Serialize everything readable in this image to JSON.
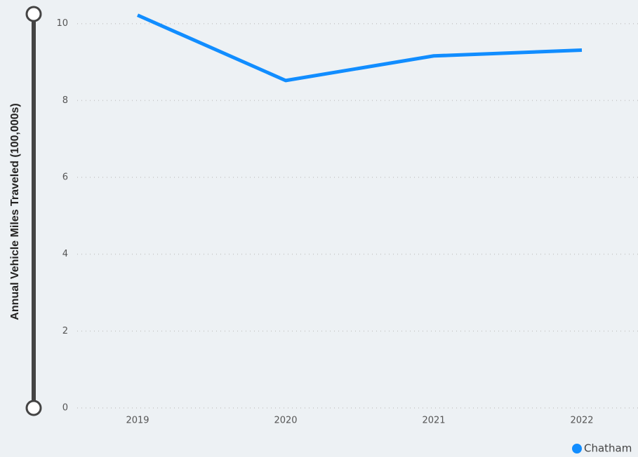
{
  "chart_data": {
    "type": "line",
    "y_axis_label": "Annual Vehicle Miles Traveled (100,000s)",
    "x": [
      "2019",
      "2020",
      "2021",
      "2022"
    ],
    "series": [
      {
        "name": "Chatham",
        "color": "#118dff",
        "values": [
          10.22,
          8.52,
          9.16,
          9.31
        ]
      }
    ],
    "ylim": [
      0,
      10.25
    ],
    "yticks": [
      0,
      2,
      4,
      6,
      8,
      10
    ],
    "grid": true,
    "legend": "bottom-right"
  }
}
